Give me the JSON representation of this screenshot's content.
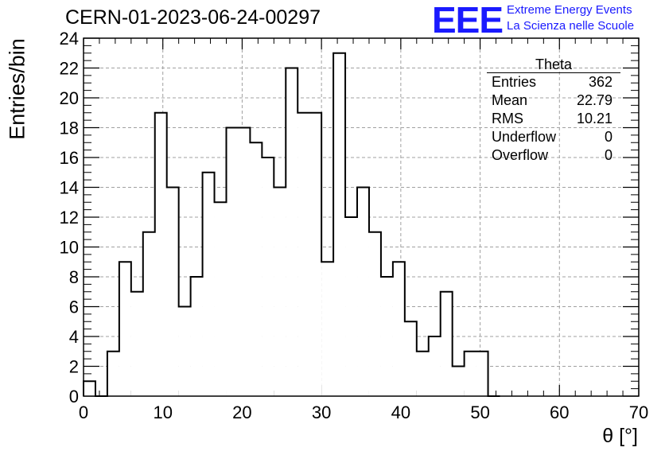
{
  "header": {
    "run_title": "CERN-01-2023-06-24-00297",
    "logo": "EEE",
    "logo_line1": "Extreme Energy Events",
    "logo_line2": "La Scienza nelle Scuole"
  },
  "stats": {
    "title": "Theta",
    "rows": [
      {
        "label": "Entries",
        "value": "362"
      },
      {
        "label": "Mean",
        "value": "22.79"
      },
      {
        "label": "RMS",
        "value": "10.21"
      },
      {
        "label": "Underflow",
        "value": "0"
      },
      {
        "label": "Overflow",
        "value": "0"
      }
    ]
  },
  "colors": {
    "logo": "#1a1aff",
    "histogram": "#000000",
    "grid": "#a0a0a0"
  },
  "chart_data": {
    "type": "bar",
    "style": "step-histogram",
    "xlabel": "θ [°]",
    "ylabel": "Entries/bin",
    "xlim": [
      0,
      70
    ],
    "ylim": [
      0,
      24
    ],
    "xticks": [
      0,
      10,
      20,
      30,
      40,
      50,
      60,
      70
    ],
    "yticks": [
      0,
      2,
      4,
      6,
      8,
      10,
      12,
      14,
      16,
      18,
      20,
      22,
      24
    ],
    "grid": true,
    "bin_width": 1.5,
    "bin_edges_start": 0,
    "values": [
      1,
      0,
      3,
      9,
      7,
      11,
      19,
      14,
      6,
      8,
      15,
      13,
      18,
      18,
      17,
      16,
      14,
      22,
      19,
      19,
      9,
      23,
      12,
      14,
      11,
      8,
      9,
      5,
      3,
      4,
      7,
      2,
      3,
      3,
      0
    ]
  }
}
